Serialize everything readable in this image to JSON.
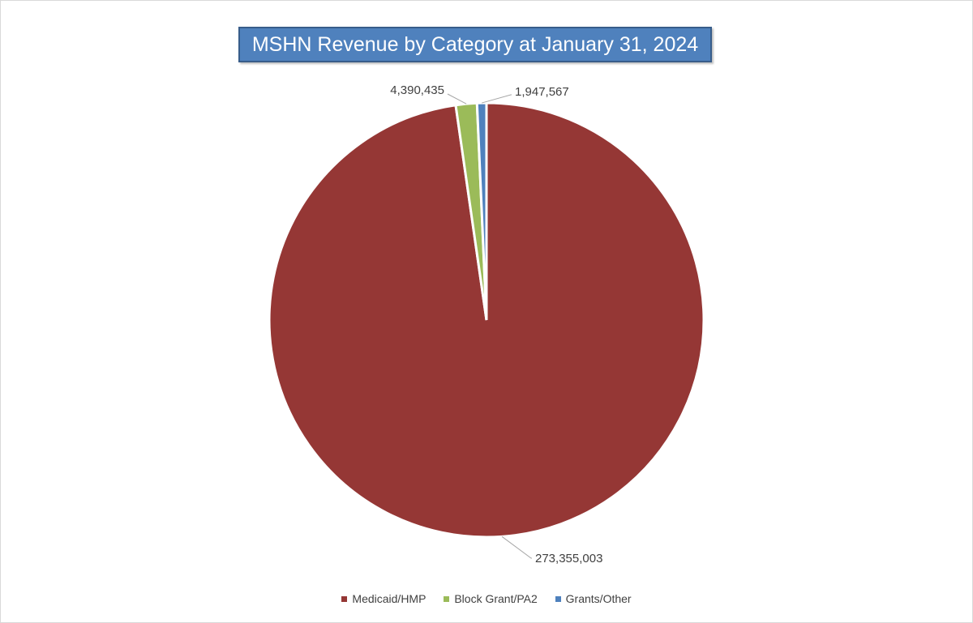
{
  "chart_data": {
    "type": "pie",
    "title": "MSHN Revenue by Category at January 31, 2024",
    "categories": [
      "Medicaid/HMP",
      "Block Grant/PA2",
      "Grants/Other"
    ],
    "values": [
      273355003,
      4390435,
      1947567
    ],
    "data_labels": [
      "273,355,003",
      "4,390,435",
      "1,947,567"
    ],
    "colors": [
      "#953735",
      "#9bbb59",
      "#4f81bd"
    ],
    "legend_position": "bottom",
    "start_angle": "12 o'clock",
    "direction": "clockwise"
  }
}
